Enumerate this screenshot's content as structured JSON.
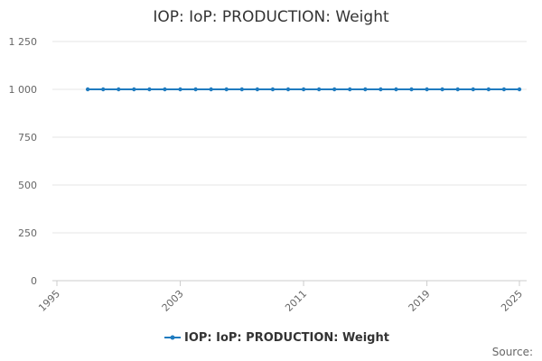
{
  "chart_data": {
    "type": "line",
    "title": "IOP: IoP: PRODUCTION: Weight",
    "xlabel": "",
    "ylabel": "",
    "x_ticks": [
      "1995",
      "2003",
      "2011",
      "2019",
      "2025"
    ],
    "y_ticks": [
      "0",
      "250",
      "500",
      "750",
      "1 000",
      "1 250"
    ],
    "xlim": [
      1995,
      2025
    ],
    "ylim": [
      0,
      1250
    ],
    "grid": true,
    "legend_position": "bottom",
    "series": [
      {
        "name": "IOP: IoP: PRODUCTION: Weight",
        "color": "#1f7bbf",
        "x": [
          1997,
          1998,
          1999,
          2000,
          2001,
          2002,
          2003,
          2004,
          2005,
          2006,
          2007,
          2008,
          2009,
          2010,
          2011,
          2012,
          2013,
          2014,
          2015,
          2016,
          2017,
          2018,
          2019,
          2020,
          2021,
          2022,
          2023,
          2024,
          2025
        ],
        "y": [
          1000,
          1000,
          1000,
          1000,
          1000,
          1000,
          1000,
          1000,
          1000,
          1000,
          1000,
          1000,
          1000,
          1000,
          1000,
          1000,
          1000,
          1000,
          1000,
          1000,
          1000,
          1000,
          1000,
          1000,
          1000,
          1000,
          1000,
          1000,
          1000
        ]
      }
    ],
    "source_label": "Source:"
  }
}
